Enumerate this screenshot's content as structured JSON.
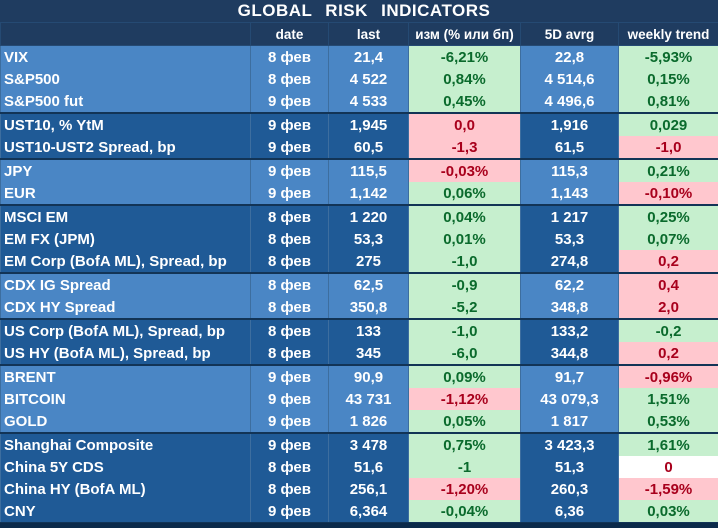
{
  "title": "GLOBAL RISK INDICATORS",
  "headers": [
    "",
    "date",
    "last",
    "изм (% или бп)",
    "5D avrg",
    "weekly trend"
  ],
  "colors": {
    "header_bg": "#1f3c60",
    "row_light": "#4a86c5",
    "row_dark": "#1f5a96",
    "positive_bg": "#c6efce",
    "positive_text": "#0a6a2c",
    "negative_bg": "#ffc7ce",
    "negative_text": "#a8001c"
  },
  "groups": [
    {
      "shade": "light",
      "rows": [
        {
          "name": "VIX",
          "date": "8 фев",
          "last": "21,4",
          "change": "-6,21%",
          "change_status": "pos",
          "avg5d": "22,8",
          "weekly": "-5,93%",
          "weekly_status": "pos"
        },
        {
          "name": "S&P500",
          "date": "8 фев",
          "last": "4 522",
          "change": "0,84%",
          "change_status": "pos",
          "avg5d": "4 514,6",
          "weekly": "0,15%",
          "weekly_status": "pos"
        },
        {
          "name": "S&P500 fut",
          "date": "9 фев",
          "last": "4 533",
          "change": "0,45%",
          "change_status": "pos",
          "avg5d": "4 496,6",
          "weekly": "0,81%",
          "weekly_status": "pos"
        }
      ]
    },
    {
      "shade": "dark",
      "rows": [
        {
          "name": "UST10, % YtM",
          "date": "9 фев",
          "last": "1,945",
          "change": "0,0",
          "change_status": "neg",
          "avg5d": "1,916",
          "weekly": "0,029",
          "weekly_status": "pos"
        },
        {
          "name": "UST10-UST2 Spread, bp",
          "date": "9 фев",
          "last": "60,5",
          "change": "-1,3",
          "change_status": "neg",
          "avg5d": "61,5",
          "weekly": "-1,0",
          "weekly_status": "neg"
        }
      ]
    },
    {
      "shade": "light",
      "rows": [
        {
          "name": "JPY",
          "date": "9 фев",
          "last": "115,5",
          "change": "-0,03%",
          "change_status": "neg",
          "avg5d": "115,3",
          "weekly": "0,21%",
          "weekly_status": "pos"
        },
        {
          "name": "EUR",
          "date": "9 фев",
          "last": "1,142",
          "change": "0,06%",
          "change_status": "pos",
          "avg5d": "1,143",
          "weekly": "-0,10%",
          "weekly_status": "neg"
        }
      ]
    },
    {
      "shade": "dark",
      "rows": [
        {
          "name": "MSCI EM",
          "date": "8 фев",
          "last": "1 220",
          "change": "0,04%",
          "change_status": "pos",
          "avg5d": "1 217",
          "weekly": "0,25%",
          "weekly_status": "pos"
        },
        {
          "name": "EM FX (JPM)",
          "date": "8 фев",
          "last": "53,3",
          "change": "0,01%",
          "change_status": "pos",
          "avg5d": "53,3",
          "weekly": "0,07%",
          "weekly_status": "pos"
        },
        {
          "name": "EM Corp (BofA ML), Spread, bp",
          "date": "8 фев",
          "last": "275",
          "change": "-1,0",
          "change_status": "pos",
          "avg5d": "274,8",
          "weekly": "0,2",
          "weekly_status": "neg"
        }
      ]
    },
    {
      "shade": "light",
      "rows": [
        {
          "name": "CDX IG Spread",
          "date": "8 фев",
          "last": "62,5",
          "change": "-0,9",
          "change_status": "pos",
          "avg5d": "62,2",
          "weekly": "0,4",
          "weekly_status": "neg"
        },
        {
          "name": "CDX HY Spread",
          "date": "8 фев",
          "last": "350,8",
          "change": "-5,2",
          "change_status": "pos",
          "avg5d": "348,8",
          "weekly": "2,0",
          "weekly_status": "neg"
        }
      ]
    },
    {
      "shade": "dark",
      "rows": [
        {
          "name": "US Corp (BofA ML), Spread, bp",
          "date": "8 фев",
          "last": "133",
          "change": "-1,0",
          "change_status": "pos",
          "avg5d": "133,2",
          "weekly": "-0,2",
          "weekly_status": "pos"
        },
        {
          "name": "US HY (BofA ML), Spread, bp",
          "date": "8 фев",
          "last": "345",
          "change": "-6,0",
          "change_status": "pos",
          "avg5d": "344,8",
          "weekly": "0,2",
          "weekly_status": "neg"
        }
      ]
    },
    {
      "shade": "light",
      "rows": [
        {
          "name": "BRENT",
          "date": "9 фев",
          "last": "90,9",
          "change": "0,09%",
          "change_status": "pos",
          "avg5d": "91,7",
          "weekly": "-0,96%",
          "weekly_status": "neg"
        },
        {
          "name": "BITCOIN",
          "date": "9 фев",
          "last": "43 731",
          "change": "-1,12%",
          "change_status": "neg",
          "avg5d": "43 079,3",
          "weekly": "1,51%",
          "weekly_status": "pos"
        },
        {
          "name": "GOLD",
          "date": "9 фев",
          "last": "1 826",
          "change": "0,05%",
          "change_status": "pos",
          "avg5d": "1 817",
          "weekly": "0,53%",
          "weekly_status": "pos"
        }
      ]
    },
    {
      "shade": "dark",
      "rows": [
        {
          "name": "Shanghai Composite",
          "date": "9 фев",
          "last": "3 478",
          "change": "0,75%",
          "change_status": "pos",
          "avg5d": "3 423,3",
          "weekly": "1,61%",
          "weekly_status": "pos"
        },
        {
          "name": "China 5Y CDS",
          "date": "8 фев",
          "last": "51,6",
          "change": "-1",
          "change_status": "pos",
          "avg5d": "51,3",
          "weekly": "0",
          "weekly_status": "neu"
        },
        {
          "name": "China HY (BofA ML)",
          "date": "8 фев",
          "last": "256,1",
          "change": "-1,20%",
          "change_status": "neg",
          "avg5d": "260,3",
          "weekly": "-1,59%",
          "weekly_status": "neg"
        },
        {
          "name": "CNY",
          "date": "9 фев",
          "last": "6,364",
          "change": "-0,04%",
          "change_status": "pos",
          "avg5d": "6,36",
          "weekly": "0,03%",
          "weekly_status": "pos"
        }
      ]
    }
  ]
}
